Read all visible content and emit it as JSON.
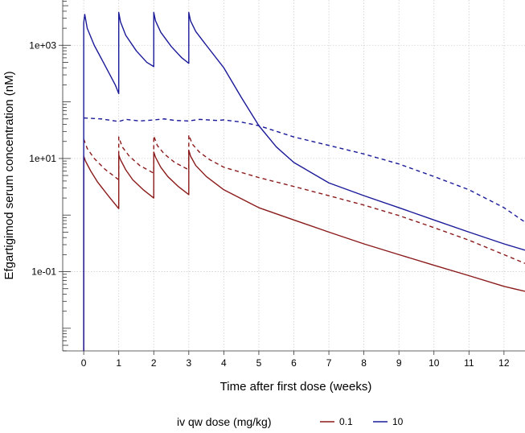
{
  "chart_data": {
    "type": "line",
    "title": "",
    "xlabel": "Time after first dose (weeks)",
    "ylabel": "Efgartigimod serum concentration (nM)",
    "xlim": [
      -0.6,
      12.6
    ],
    "ylim_log10": [
      -2.4,
      3.8
    ],
    "y_scale": "log10",
    "x_ticks": [
      0,
      1,
      2,
      3,
      4,
      5,
      6,
      7,
      8,
      9,
      10,
      11,
      12
    ],
    "x_tick_labels": [
      "0",
      "1",
      "2",
      "3",
      "4",
      "5",
      "6",
      "7",
      "8",
      "9",
      "10",
      "11",
      "12"
    ],
    "y_major_ticks": [
      0.1,
      10,
      1000
    ],
    "y_tick_labels": [
      "1e-01",
      "1e+01",
      "1e+03"
    ],
    "grid": true,
    "legend": {
      "title": "iv qw dose (mg/kg)",
      "position": "bottom",
      "entries": [
        {
          "label": "0.1",
          "color": "#8B1A1A"
        },
        {
          "label": "10",
          "color": "#1A1A99"
        }
      ]
    },
    "series": [
      {
        "name": "0.1 solid",
        "dose": "0.1",
        "color": "#8B1A1A",
        "dash": false,
        "points": [
          [
            0,
            0.004
          ],
          [
            0,
            11
          ],
          [
            0.05,
            9
          ],
          [
            0.2,
            6
          ],
          [
            0.4,
            3.8
          ],
          [
            0.7,
            2.2
          ],
          [
            1,
            1.3
          ],
          [
            1,
            11.5
          ],
          [
            1.05,
            9.5
          ],
          [
            1.2,
            6.3
          ],
          [
            1.4,
            4.2
          ],
          [
            1.7,
            2.8
          ],
          [
            2,
            2
          ],
          [
            2,
            13
          ],
          [
            2.05,
            10.5
          ],
          [
            2.2,
            7
          ],
          [
            2.4,
            4.8
          ],
          [
            2.7,
            3.2
          ],
          [
            3,
            2.3
          ],
          [
            3,
            14
          ],
          [
            3.05,
            11
          ],
          [
            3.2,
            7.5
          ],
          [
            3.5,
            4.8
          ],
          [
            4,
            2.8
          ],
          [
            5,
            1.35
          ],
          [
            6,
            0.82
          ],
          [
            7,
            0.5
          ],
          [
            8,
            0.31
          ],
          [
            9,
            0.2
          ],
          [
            10,
            0.13
          ],
          [
            11,
            0.085
          ],
          [
            12,
            0.055
          ],
          [
            12.6,
            0.045
          ]
        ]
      },
      {
        "name": "0.1 dashed",
        "dose": "0.1",
        "color": "#8B1A1A",
        "dash": true,
        "points": [
          [
            0,
            22
          ],
          [
            0.1,
            15
          ],
          [
            0.3,
            10
          ],
          [
            0.6,
            6.5
          ],
          [
            1,
            4.2
          ],
          [
            1,
            24
          ],
          [
            1.1,
            16
          ],
          [
            1.3,
            11
          ],
          [
            1.6,
            7.5
          ],
          [
            2,
            5.5
          ],
          [
            2,
            25
          ],
          [
            2.1,
            17
          ],
          [
            2.3,
            12
          ],
          [
            2.6,
            8.5
          ],
          [
            3,
            6.3
          ],
          [
            3,
            26
          ],
          [
            3.1,
            18
          ],
          [
            3.3,
            13
          ],
          [
            3.6,
            9.5
          ],
          [
            4,
            7
          ],
          [
            5,
            4.6
          ],
          [
            6,
            3.2
          ],
          [
            7,
            2.2
          ],
          [
            8,
            1.5
          ],
          [
            9,
            0.98
          ],
          [
            10,
            0.6
          ],
          [
            11,
            0.36
          ],
          [
            12,
            0.2
          ],
          [
            12.6,
            0.14
          ]
        ]
      },
      {
        "name": "10 solid",
        "dose": "10",
        "color": "#1A1A99",
        "dash": false,
        "points": [
          [
            0,
            0.004
          ],
          [
            0,
            2500
          ],
          [
            0.03,
            3500
          ],
          [
            0.1,
            2000
          ],
          [
            0.3,
            1000
          ],
          [
            0.6,
            450
          ],
          [
            0.9,
            200
          ],
          [
            1,
            140
          ],
          [
            1,
            3800
          ],
          [
            1.05,
            2600
          ],
          [
            1.2,
            1500
          ],
          [
            1.5,
            800
          ],
          [
            1.8,
            500
          ],
          [
            2,
            420
          ],
          [
            2,
            3800
          ],
          [
            2.05,
            2700
          ],
          [
            2.2,
            1700
          ],
          [
            2.5,
            950
          ],
          [
            2.8,
            600
          ],
          [
            3,
            480
          ],
          [
            3,
            3800
          ],
          [
            3.05,
            2700
          ],
          [
            3.2,
            1750
          ],
          [
            3.5,
            1000
          ],
          [
            4,
            400
          ],
          [
            4.5,
            120
          ],
          [
            5,
            38
          ],
          [
            5.5,
            16
          ],
          [
            6,
            8.5
          ],
          [
            7,
            3.7
          ],
          [
            8,
            2.2
          ],
          [
            9,
            1.35
          ],
          [
            10,
            0.82
          ],
          [
            11,
            0.5
          ],
          [
            12,
            0.31
          ],
          [
            12.6,
            0.24
          ]
        ]
      },
      {
        "name": "10 dashed",
        "dose": "10",
        "color": "#1A1A99",
        "dash": true,
        "points": [
          [
            0,
            52
          ],
          [
            0.5,
            50
          ],
          [
            1,
            45
          ],
          [
            1.2,
            49
          ],
          [
            1.6,
            46
          ],
          [
            2,
            48
          ],
          [
            2.3,
            50
          ],
          [
            2.6,
            47
          ],
          [
            3,
            46
          ],
          [
            3.3,
            49
          ],
          [
            3.8,
            47
          ],
          [
            4,
            48
          ],
          [
            4.5,
            44
          ],
          [
            5,
            38
          ],
          [
            6,
            24
          ],
          [
            7,
            17
          ],
          [
            8,
            12
          ],
          [
            9,
            8
          ],
          [
            10,
            4.8
          ],
          [
            11,
            2.8
          ],
          [
            12,
            1.35
          ],
          [
            12.6,
            0.75
          ]
        ]
      }
    ]
  }
}
